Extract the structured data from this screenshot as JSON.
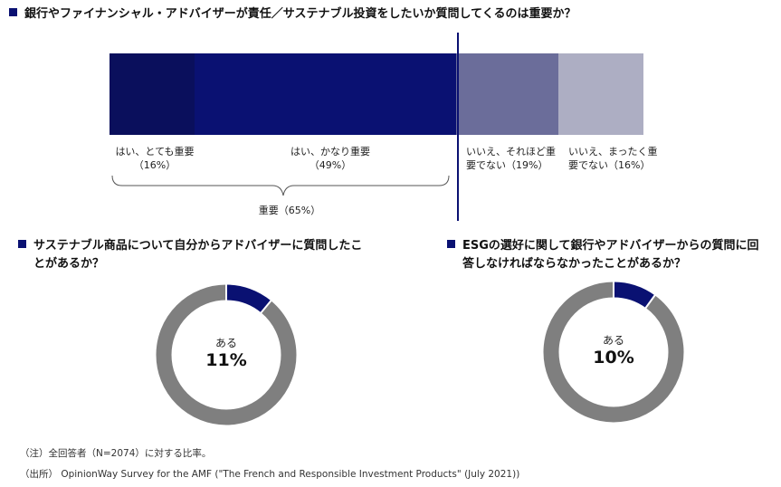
{
  "top_question": {
    "title": "銀行やファイナンシャル・アドバイザーが責任／サステナブル投資をしたいか質問してくるのは重要か？"
  },
  "chart_data": [
    {
      "type": "bar",
      "orientation": "horizontal-stacked",
      "segments": [
        {
          "label": "はい、とても重要",
          "value": 16,
          "value_label": "（16%）",
          "color": "#0a0f5c"
        },
        {
          "label": "はい、かなり重要",
          "value": 49,
          "value_label": "（49%）",
          "color": "#0a1172"
        },
        {
          "label": "いいえ、それほど重要でない",
          "label_line1": "いいえ、それほど重",
          "label_line2": "要でない",
          "value": 19,
          "value_label": "（19%）",
          "color": "#6b6d9a"
        },
        {
          "label": "いいえ、まったく重要でない",
          "label_line1": "いいえ、まったく重",
          "label_line2": "要でない",
          "value": 16,
          "value_label": "（16%）",
          "color": "#adaec3"
        }
      ],
      "group_label": "重要（65%）",
      "group_value": 65
    },
    {
      "type": "pie",
      "title_line1": "サステナブル商品について自分からアドバイザーに質問したこ",
      "title_line2": "とがあるか？",
      "slices": [
        {
          "label": "ある",
          "value": 11,
          "color": "#0a1172"
        },
        {
          "label": "",
          "value": 89,
          "color": "#7f7f7f"
        }
      ],
      "center_label": "ある",
      "center_value": "11%"
    },
    {
      "type": "pie",
      "title_line1": "ESGの選好に関して銀行やアドバイザーからの質問に回",
      "title_line2": "答しなければならなかったことがあるか？",
      "slices": [
        {
          "label": "ある",
          "value": 10,
          "color": "#0a1172"
        },
        {
          "label": "",
          "value": 90,
          "color": "#7f7f7f"
        }
      ],
      "center_label": "ある",
      "center_value": "10%"
    }
  ],
  "footnotes": {
    "note": "（注）全回答者（N=2074）に対する比率。",
    "source": "（出所）  OpinionWay Survey for the AMF (\"The French and Responsible Investment Products\" (July 2021))"
  }
}
